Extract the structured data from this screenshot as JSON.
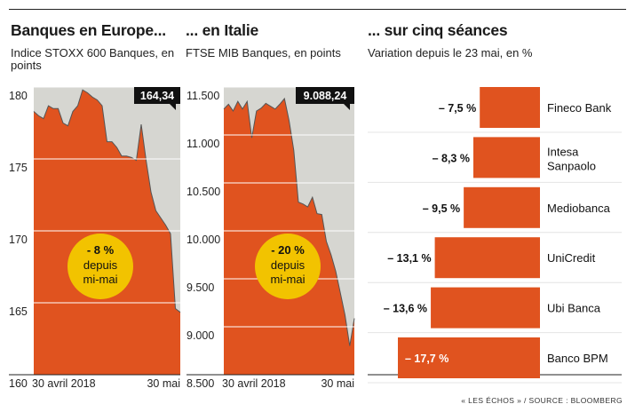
{
  "source": "« LES ÉCHOS » / SOURCE : BLOOMBERG",
  "chart_data": [
    {
      "type": "area",
      "title": "Banques en Europe...",
      "subtitle": "Indice STOXX 600 Banques, en points",
      "x_tick_labels": [
        "30 avril 2018",
        "30 mai"
      ],
      "y_tick_labels": [
        "180",
        "175",
        "170",
        "165",
        "160"
      ],
      "yticks": [
        180,
        175,
        170,
        165,
        160
      ],
      "ylim": [
        160,
        180
      ],
      "last_value_label": "164,34",
      "annotation": {
        "change": "- 8 %",
        "line1": "depuis",
        "line2": "mi-mai"
      },
      "values": [
        178.3,
        178.0,
        177.8,
        178.7,
        178.5,
        178.5,
        177.5,
        177.3,
        178.3,
        178.7,
        179.8,
        179.6,
        179.3,
        179.1,
        178.7,
        176.2,
        176.2,
        175.8,
        175.2,
        175.2,
        175.1,
        174.9,
        177.4,
        174.9,
        172.7,
        171.4,
        170.9,
        170.4,
        169.8,
        164.6,
        164.34
      ],
      "grid": "horizontal"
    },
    {
      "type": "area",
      "title": "... en Italie",
      "subtitle": "FTSE MIB Banques, en points",
      "x_tick_labels": [
        "30 avril 2018",
        "30 mai"
      ],
      "y_tick_labels": [
        "11.500",
        "11.000",
        "10.500",
        "10.000",
        "9.500",
        "9.000",
        "8.500"
      ],
      "yticks": [
        11500,
        11000,
        10500,
        10000,
        9500,
        9000,
        8500
      ],
      "ylim": [
        8500,
        11500
      ],
      "last_value_label": "9.088,24",
      "annotation": {
        "change": "- 20 %",
        "line1": "depuis",
        "line2": "mi-mai"
      },
      "values": [
        11270,
        11320,
        11250,
        11350,
        11270,
        11350,
        10970,
        11250,
        11280,
        11330,
        11300,
        11270,
        11320,
        11380,
        11150,
        10840,
        10300,
        10280,
        10250,
        10350,
        10180,
        10170,
        9890,
        9750,
        9580,
        9350,
        9120,
        8800,
        9088.24
      ],
      "grid": "horizontal"
    },
    {
      "type": "bar",
      "orientation": "horizontal",
      "title": "... sur cinq séances",
      "subtitle": "Variation depuis le 23 mai, en %",
      "categories": [
        "Fineco Bank",
        "Intesa Sanpaolo",
        "Mediobanca",
        "UniCredit",
        "Ubi Banca",
        "Banco BPM"
      ],
      "values": [
        -7.5,
        -8.3,
        -9.5,
        -13.1,
        -13.6,
        -17.7
      ],
      "value_labels": [
        "– 7,5 %",
        "– 8,3 %",
        "– 9,5 %",
        "– 13,1 %",
        "– 13,6 %",
        "– 17,7 %"
      ]
    }
  ],
  "colors": {
    "bar": "#e0531f",
    "grey": "#d6d6d1",
    "yellow": "#f2c300",
    "text": "#1a1a1a"
  }
}
